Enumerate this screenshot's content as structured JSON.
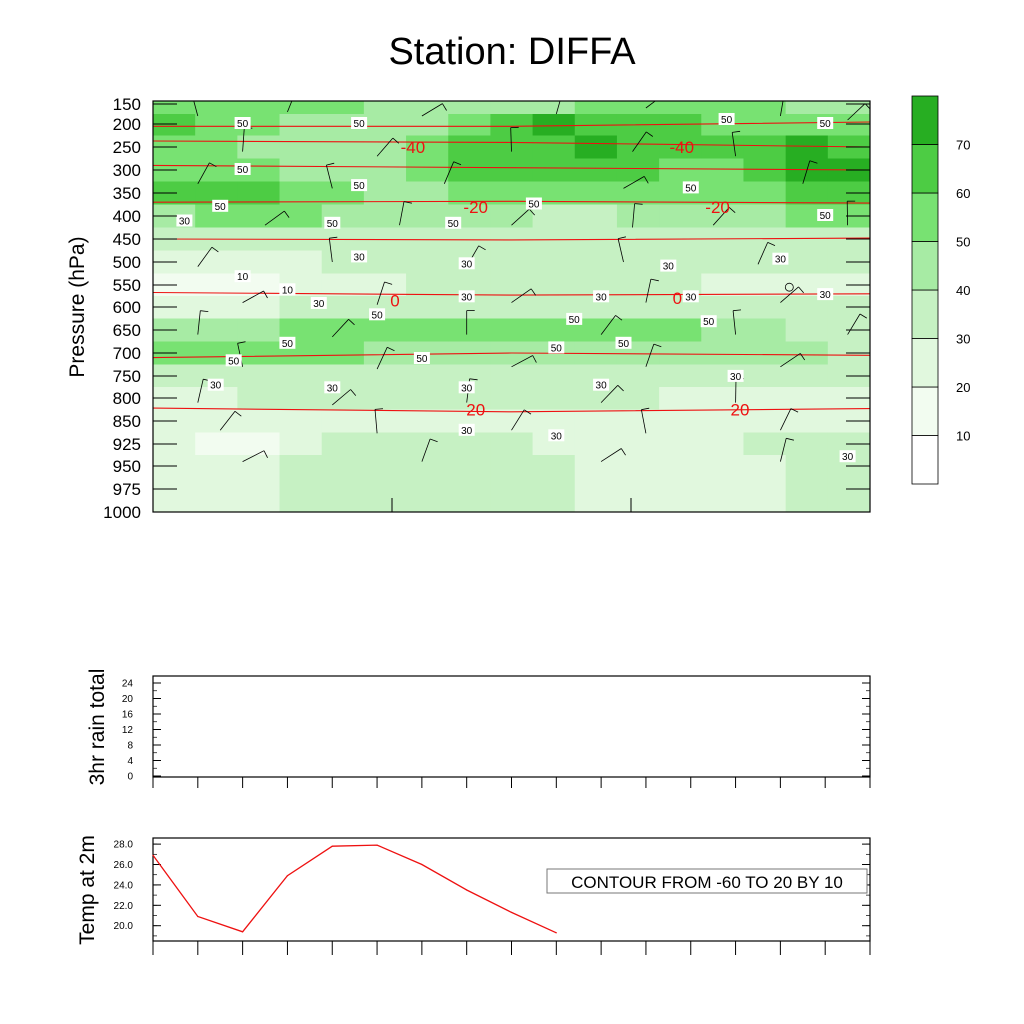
{
  "title": "Station: DIFFA",
  "colors": {
    "shades": [
      "#ffffff",
      "#f2fcf0",
      "#e1f8de",
      "#c6f1c3",
      "#a7eba4",
      "#78e272",
      "#4dcc44",
      "#27ae22",
      "#149113"
    ],
    "temp_line": "#ee1111",
    "wind_line": "#000000",
    "contour_line": "#555555"
  },
  "chart_data": [
    {
      "type": "heatmap",
      "name": "time-pressure cross-section",
      "ylabel": "Pressure (hPa)",
      "y_ticks": [
        "150",
        "200",
        "250",
        "300",
        "350",
        "400",
        "450",
        "500",
        "550",
        "600",
        "650",
        "700",
        "750",
        "800",
        "850",
        "925",
        "950",
        "975",
        "1000"
      ],
      "colorbar": {
        "levels": [
          0,
          10,
          20,
          30,
          40,
          50,
          60,
          70,
          80
        ],
        "labels": [
          "10",
          "20",
          "30",
          "40",
          "50",
          "60",
          "70"
        ]
      },
      "humidity_field": [
        [
          55,
          50,
          50,
          50,
          50,
          48,
          45,
          45,
          40,
          45,
          50,
          50,
          50,
          50,
          50,
          45,
          40
        ],
        [
          60,
          55,
          50,
          45,
          42,
          45,
          45,
          55,
          68,
          70,
          68,
          62,
          60,
          55,
          50,
          50,
          50
        ],
        [
          55,
          50,
          45,
          40,
          40,
          45,
          50,
          60,
          65,
          68,
          70,
          68,
          65,
          62,
          68,
          70,
          65
        ],
        [
          55,
          55,
          50,
          45,
          40,
          45,
          50,
          60,
          60,
          62,
          62,
          60,
          55,
          55,
          60,
          72,
          70
        ],
        [
          68,
          65,
          62,
          50,
          50,
          48,
          45,
          50,
          50,
          50,
          50,
          50,
          50,
          50,
          55,
          60,
          68
        ],
        [
          45,
          50,
          52,
          50,
          48,
          45,
          42,
          45,
          40,
          35,
          35,
          40,
          45,
          45,
          45,
          50,
          55
        ],
        [
          30,
          30,
          35,
          35,
          35,
          35,
          35,
          35,
          30,
          30,
          30,
          30,
          30,
          32,
          35,
          35,
          35
        ],
        [
          20,
          20,
          25,
          28,
          30,
          30,
          30,
          30,
          30,
          30,
          30,
          30,
          30,
          30,
          30,
          30,
          30
        ],
        [
          15,
          10,
          15,
          20,
          25,
          28,
          30,
          30,
          30,
          30,
          30,
          30,
          30,
          28,
          28,
          26,
          26
        ],
        [
          20,
          20,
          25,
          30,
          35,
          35,
          35,
          32,
          30,
          30,
          30,
          32,
          35,
          35,
          33,
          32,
          32
        ],
        [
          40,
          45,
          48,
          50,
          50,
          50,
          52,
          55,
          55,
          55,
          55,
          52,
          50,
          45,
          40,
          38,
          38
        ],
        [
          50,
          52,
          52,
          50,
          50,
          48,
          45,
          45,
          45,
          45,
          45,
          45,
          42,
          40,
          40,
          40,
          38
        ],
        [
          35,
          35,
          35,
          35,
          35,
          35,
          35,
          35,
          35,
          35,
          35,
          35,
          35,
          35,
          35,
          35,
          35
        ],
        [
          25,
          28,
          30,
          30,
          30,
          30,
          30,
          30,
          30,
          30,
          30,
          30,
          28,
          28,
          28,
          28,
          28
        ],
        [
          22,
          22,
          22,
          24,
          26,
          28,
          28,
          28,
          28,
          26,
          25,
          25,
          25,
          25,
          25,
          25,
          25
        ],
        [
          25,
          18,
          18,
          25,
          30,
          35,
          35,
          35,
          30,
          28,
          25,
          25,
          25,
          28,
          30,
          32,
          32
        ],
        [
          28,
          28,
          28,
          30,
          32,
          35,
          35,
          35,
          32,
          30,
          28,
          28,
          28,
          28,
          28,
          30,
          32
        ],
        [
          28,
          28,
          28,
          30,
          32,
          35,
          35,
          35,
          32,
          30,
          28,
          28,
          28,
          28,
          28,
          30,
          32
        ],
        [
          28,
          28,
          28,
          30,
          32,
          35,
          35,
          35,
          32,
          30,
          28,
          28,
          28,
          28,
          28,
          30,
          32
        ]
      ],
      "contour_labels": [
        {
          "text": "50",
          "time": 2,
          "p": 200
        },
        {
          "text": "50",
          "time": 4.6,
          "p": 200
        },
        {
          "text": "50",
          "time": 12.8,
          "p": 190
        },
        {
          "text": "50",
          "time": 15,
          "p": 200
        },
        {
          "text": "50",
          "time": 2,
          "p": 300
        },
        {
          "text": "50",
          "time": 4.6,
          "p": 335
        },
        {
          "text": "50",
          "time": 12,
          "p": 340
        },
        {
          "text": "50",
          "time": 8.5,
          "p": 375
        },
        {
          "text": "50",
          "time": 15,
          "p": 400
        },
        {
          "text": "50",
          "time": 1.5,
          "p": 380
        },
        {
          "text": "30",
          "time": 0.7,
          "p": 412
        },
        {
          "text": "50",
          "time": 4,
          "p": 417
        },
        {
          "text": "50",
          "time": 6.7,
          "p": 417
        },
        {
          "text": "30",
          "time": 4.6,
          "p": 490
        },
        {
          "text": "30",
          "time": 7,
          "p": 505
        },
        {
          "text": "30",
          "time": 11.5,
          "p": 510
        },
        {
          "text": "30",
          "time": 14,
          "p": 495
        },
        {
          "text": "10",
          "time": 2,
          "p": 533
        },
        {
          "text": "10",
          "time": 3,
          "p": 562
        },
        {
          "text": "30",
          "time": 3.7,
          "p": 593
        },
        {
          "text": "30",
          "time": 7,
          "p": 578
        },
        {
          "text": "30",
          "time": 10,
          "p": 578
        },
        {
          "text": "30",
          "time": 12,
          "p": 578
        },
        {
          "text": "30",
          "time": 15,
          "p": 573
        },
        {
          "text": "50",
          "time": 5,
          "p": 618
        },
        {
          "text": "50",
          "time": 9.4,
          "p": 628
        },
        {
          "text": "50",
          "time": 12.4,
          "p": 633
        },
        {
          "text": "50",
          "time": 3,
          "p": 680
        },
        {
          "text": "50",
          "time": 9,
          "p": 690
        },
        {
          "text": "50",
          "time": 10.5,
          "p": 680
        },
        {
          "text": "50",
          "time": 1.8,
          "p": 718
        },
        {
          "text": "50",
          "time": 6,
          "p": 713
        },
        {
          "text": "30",
          "time": 1.4,
          "p": 772
        },
        {
          "text": "30",
          "time": 4,
          "p": 778
        },
        {
          "text": "30",
          "time": 7,
          "p": 778
        },
        {
          "text": "30",
          "time": 10,
          "p": 772
        },
        {
          "text": "30",
          "time": 13,
          "p": 752
        },
        {
          "text": "30",
          "time": 7,
          "p": 882
        },
        {
          "text": "30",
          "time": 9,
          "p": 900
        },
        {
          "text": "30",
          "time": 15.5,
          "p": 940
        }
      ],
      "temperature_contours": [
        {
          "value": -50,
          "points": [
            [
              0,
              205
            ],
            [
              8,
              205
            ],
            [
              16,
              195
            ]
          ]
        },
        {
          "value": -40,
          "points": [
            [
              0,
              237
            ],
            [
              8,
              240
            ],
            [
              16,
              250
            ]
          ]
        },
        {
          "value": -30,
          "points": [
            [
              0,
              290
            ],
            [
              8,
              295
            ],
            [
              16,
              300
            ]
          ]
        },
        {
          "value": -20,
          "points": [
            [
              0,
              370
            ],
            [
              8,
              368
            ],
            [
              16,
              372
            ]
          ]
        },
        {
          "value": -10,
          "points": [
            [
              0,
              450
            ],
            [
              8,
              452
            ],
            [
              16,
              448
            ]
          ]
        },
        {
          "value": 0,
          "points": [
            [
              0,
              567
            ],
            [
              8,
              573
            ],
            [
              16,
              570
            ]
          ]
        },
        {
          "value": 10,
          "points": [
            [
              0,
              710
            ],
            [
              8,
              700
            ],
            [
              16,
              705
            ]
          ]
        },
        {
          "value": 20,
          "points": [
            [
              0,
              822
            ],
            [
              8,
              830
            ],
            [
              16,
              823
            ]
          ]
        }
      ],
      "temperature_labels": [
        {
          "text": "-40",
          "time": 5.8,
          "p": 250
        },
        {
          "text": "-40",
          "time": 11.8,
          "p": 250
        },
        {
          "text": "-20",
          "time": 7.2,
          "p": 380
        },
        {
          "text": "-20",
          "time": 12.6,
          "p": 380
        },
        {
          "text": "0",
          "time": 5.4,
          "p": 585
        },
        {
          "text": "0",
          "time": 11.7,
          "p": 580
        },
        {
          "text": "20",
          "time": 7.2,
          "p": 825
        },
        {
          "text": "20",
          "time": 13.1,
          "p": 825
        }
      ],
      "wind_barbs": [
        {
          "time": 1,
          "p": 180
        },
        {
          "time": 3,
          "p": 170
        },
        {
          "time": 6,
          "p": 180
        },
        {
          "time": 9,
          "p": 175
        },
        {
          "time": 11,
          "p": 160
        },
        {
          "time": 14,
          "p": 180
        },
        {
          "time": 15.5,
          "p": 190
        },
        {
          "time": 2,
          "p": 260
        },
        {
          "time": 5,
          "p": 270
        },
        {
          "time": 8,
          "p": 260
        },
        {
          "time": 10.7,
          "p": 260
        },
        {
          "time": 13,
          "p": 270
        },
        {
          "time": 1,
          "p": 330
        },
        {
          "time": 4,
          "p": 340
        },
        {
          "time": 6.5,
          "p": 330
        },
        {
          "time": 10.5,
          "p": 340
        },
        {
          "time": 14.5,
          "p": 330
        },
        {
          "time": 2.5,
          "p": 420
        },
        {
          "time": 5.5,
          "p": 420
        },
        {
          "time": 8,
          "p": 420
        },
        {
          "time": 10.7,
          "p": 425
        },
        {
          "time": 12.5,
          "p": 420
        },
        {
          "time": 15.5,
          "p": 420
        },
        {
          "time": 1,
          "p": 510
        },
        {
          "time": 4,
          "p": 500
        },
        {
          "time": 7,
          "p": 510
        },
        {
          "time": 10.5,
          "p": 500
        },
        {
          "time": 13.5,
          "p": 505
        },
        {
          "time": 2,
          "p": 590
        },
        {
          "time": 5,
          "p": 595
        },
        {
          "time": 8,
          "p": 590
        },
        {
          "time": 11,
          "p": 590
        },
        {
          "time": 14,
          "p": 590
        },
        {
          "time": 1,
          "p": 660
        },
        {
          "time": 4,
          "p": 665
        },
        {
          "time": 7,
          "p": 660
        },
        {
          "time": 10,
          "p": 660
        },
        {
          "time": 13,
          "p": 660
        },
        {
          "time": 15.5,
          "p": 660
        },
        {
          "time": 2,
          "p": 730
        },
        {
          "time": 5,
          "p": 735
        },
        {
          "time": 8,
          "p": 730
        },
        {
          "time": 11,
          "p": 730
        },
        {
          "time": 14,
          "p": 730
        },
        {
          "time": 1,
          "p": 810
        },
        {
          "time": 4,
          "p": 815
        },
        {
          "time": 7,
          "p": 810
        },
        {
          "time": 10,
          "p": 810
        },
        {
          "time": 13,
          "p": 810
        },
        {
          "time": 1.5,
          "p": 880
        },
        {
          "time": 5,
          "p": 890
        },
        {
          "time": 8,
          "p": 880
        },
        {
          "time": 11,
          "p": 890
        },
        {
          "time": 14,
          "p": 880
        },
        {
          "time": 2,
          "p": 945
        },
        {
          "time": 6,
          "p": 945
        },
        {
          "time": 10,
          "p": 945
        },
        {
          "time": 14,
          "p": 945
        }
      ],
      "calm_marker": {
        "time": 14.2,
        "p": 555
      }
    },
    {
      "type": "line",
      "name": "3hr rain total",
      "ylabel": "3hr rain total",
      "ylim": [
        0,
        24
      ],
      "y_ticks": [
        "0",
        "4",
        "8",
        "12",
        "16",
        "20",
        "24"
      ],
      "x": [],
      "values": []
    },
    {
      "type": "line",
      "name": "Temp at 2m",
      "ylabel": "Temp at 2m",
      "ylim": [
        18.5,
        28.6
      ],
      "y_ticks": [
        "20.0",
        "22.0",
        "24.0",
        "26.0",
        "28.0"
      ],
      "x": [
        0,
        1,
        2,
        3,
        4,
        5,
        6,
        7,
        8,
        9
      ],
      "values": [
        26.9,
        20.9,
        19.4,
        24.9,
        27.8,
        27.9,
        26.0,
        23.5,
        21.3,
        19.3
      ],
      "annotation": "CONTOUR FROM -60 TO 20 BY 10"
    }
  ]
}
